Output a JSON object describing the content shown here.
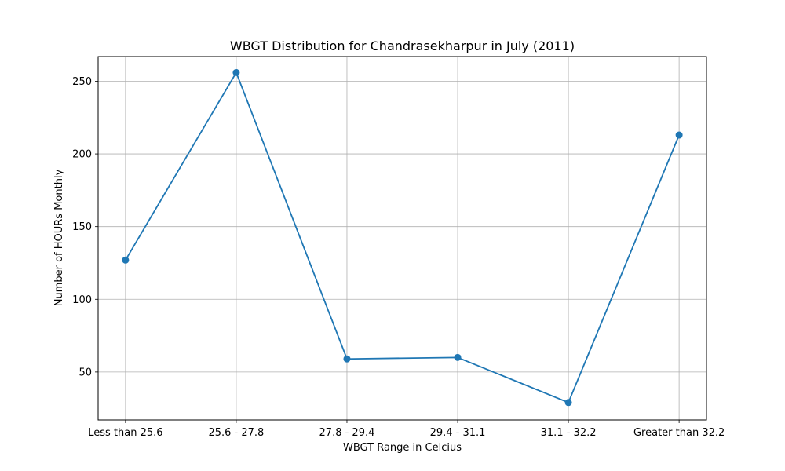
{
  "chart_data": {
    "type": "line",
    "title": "WBGT Distribution for Chandrasekharpur in July (2011)",
    "xlabel": "WBGT Range in Celcius",
    "ylabel": "Number of HOURs Monthly",
    "categories": [
      "Less than 25.6",
      "25.6 - 27.8",
      "27.8 - 29.4",
      "29.4 - 31.1",
      "31.1 - 32.2",
      "Greater than 32.2"
    ],
    "values": [
      127,
      256,
      59,
      60,
      29,
      213
    ],
    "yticks": [
      50,
      100,
      150,
      200,
      250
    ],
    "ylim": [
      17,
      267
    ],
    "grid": true,
    "line_color": "#1f77b4"
  }
}
